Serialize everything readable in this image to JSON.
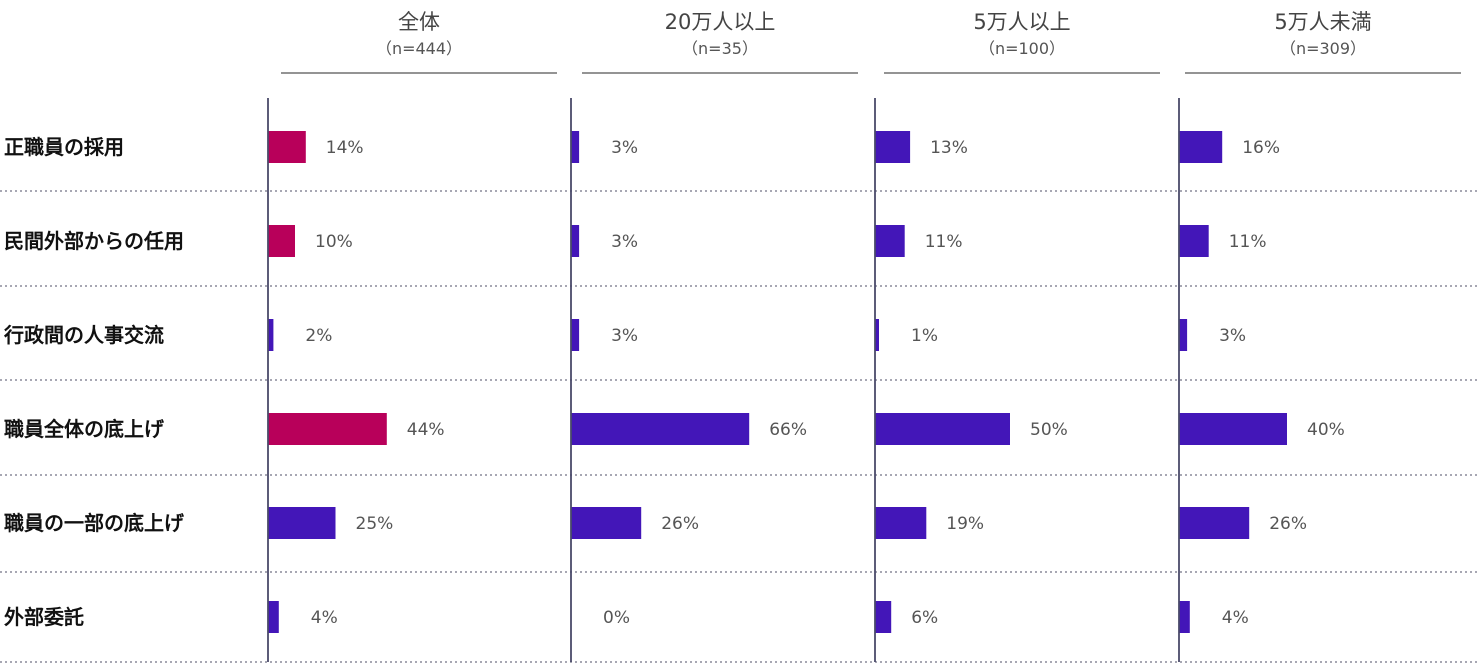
{
  "chart_data": {
    "type": "bar",
    "orientation": "horizontal",
    "categories": [
      "正職員の採用",
      "民間外部からの任用",
      "行政間の人事交流",
      "職員全体の底上げ",
      "職員の一部の底上げ",
      "外部委託"
    ],
    "panels": [
      {
        "title": "全体",
        "n": "（n=444）",
        "values": [
          14,
          10,
          2,
          44,
          25,
          4
        ],
        "labels": [
          "14%",
          "10%",
          "2%",
          "44%",
          "25%",
          "4%"
        ],
        "colors": [
          "#B8005A",
          "#B8005A",
          "#4316B8",
          "#B8005A",
          "#4316B8",
          "#4316B8"
        ]
      },
      {
        "title": "20万人以上",
        "n": "（n=35）",
        "values": [
          3,
          3,
          3,
          66,
          26,
          0
        ],
        "labels": [
          "3%",
          "3%",
          "3%",
          "66%",
          "26%",
          "0%"
        ],
        "colors": [
          "#4316B8",
          "#4316B8",
          "#4316B8",
          "#4316B8",
          "#4316B8",
          "#4316B8"
        ]
      },
      {
        "title": "5万人以上",
        "n": "（n=100）",
        "values": [
          13,
          11,
          1,
          50,
          19,
          6
        ],
        "labels": [
          "13%",
          "11%",
          "1%",
          "50%",
          "19%",
          "6%"
        ],
        "colors": [
          "#4316B8",
          "#4316B8",
          "#4316B8",
          "#4316B8",
          "#4316B8",
          "#4316B8"
        ]
      },
      {
        "title": "5万人未満",
        "n": "（n=309）",
        "values": [
          16,
          11,
          3,
          40,
          26,
          4
        ],
        "labels": [
          "16%",
          "11%",
          "3%",
          "40%",
          "26%",
          "4%"
        ],
        "colors": [
          "#4316B8",
          "#4316B8",
          "#4316B8",
          "#4316B8",
          "#4316B8",
          "#4316B8"
        ]
      }
    ],
    "xlim": [
      0,
      100
    ],
    "grid": false,
    "legend": "none"
  },
  "colors": {
    "highlight": "#B8005A",
    "primary": "#4316B8",
    "axis": "#4a4a6a",
    "separator": "#8a8a9a"
  }
}
